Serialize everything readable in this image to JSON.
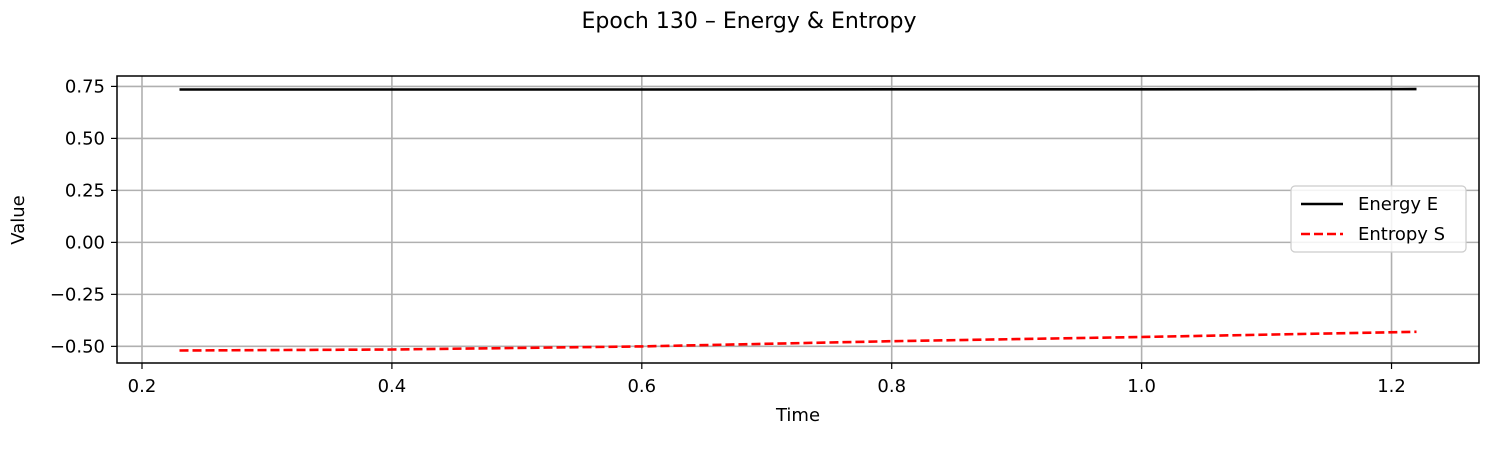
{
  "chart_data": {
    "type": "line",
    "title": "Epoch 130 – Energy & Entropy",
    "xlabel": "Time",
    "ylabel": "Value",
    "xlim": [
      0.18,
      1.27
    ],
    "ylim": [
      -0.58,
      0.8
    ],
    "xticks": [
      0.2,
      0.4,
      0.6,
      0.8,
      1.0,
      1.2
    ],
    "xtick_labels": [
      "0.2",
      "0.4",
      "0.6",
      "0.8",
      "1.0",
      "1.2"
    ],
    "yticks": [
      0.75,
      0.5,
      0.25,
      0.0,
      -0.25,
      -0.5
    ],
    "ytick_labels": [
      "0.75",
      "0.50",
      "0.25",
      "0.00",
      "−0.25",
      "−0.50"
    ],
    "grid": true,
    "legend_position": "center-right",
    "series": [
      {
        "name": "Energy E",
        "color": "#000000",
        "style": "solid",
        "x": [
          0.23,
          0.4,
          0.6,
          0.8,
          1.0,
          1.22
        ],
        "y": [
          0.735,
          0.735,
          0.735,
          0.736,
          0.736,
          0.737
        ]
      },
      {
        "name": "Entropy S",
        "color": "#ff0000",
        "style": "dashed",
        "x": [
          0.23,
          0.4,
          0.6,
          0.8,
          1.0,
          1.22
        ],
        "y": [
          -0.52,
          -0.515,
          -0.5,
          -0.475,
          -0.455,
          -0.43
        ]
      }
    ]
  }
}
